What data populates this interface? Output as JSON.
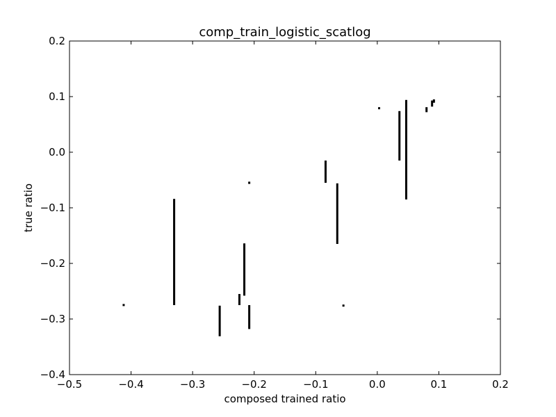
{
  "chart_data": {
    "type": "scatter",
    "title": "comp_train_logistic_scatlog",
    "xlabel": "composed trained ratio",
    "ylabel": "true ratio",
    "xlim": [
      -0.5,
      0.2
    ],
    "ylim": [
      -0.4,
      0.2
    ],
    "xticks": [
      -0.5,
      -0.4,
      -0.3,
      -0.2,
      -0.1,
      0.0,
      0.1,
      0.2
    ],
    "xtick_labels": [
      "−0.5",
      "−0.4",
      "−0.3",
      "−0.2",
      "−0.1",
      "0.0",
      "0.1",
      "0.2"
    ],
    "yticks": [
      -0.4,
      -0.3,
      -0.2,
      -0.1,
      0.0,
      0.1,
      0.2
    ],
    "ytick_labels": [
      "−0.4",
      "−0.3",
      "−0.2",
      "−0.1",
      "0.0",
      "0.1",
      "0.2"
    ],
    "grid": false,
    "legend": "none",
    "marker_color": "#000000",
    "points": [
      {
        "x": -0.412,
        "y_min": -0.276,
        "y_max": -0.273
      },
      {
        "x": -0.33,
        "y_min": -0.275,
        "y_max": -0.084
      },
      {
        "x": -0.256,
        "y_min": -0.331,
        "y_max": -0.276
      },
      {
        "x": -0.224,
        "y_min": -0.275,
        "y_max": -0.255
      },
      {
        "x": -0.216,
        "y_min": -0.258,
        "y_max": -0.164
      },
      {
        "x": -0.208,
        "y_min": -0.318,
        "y_max": -0.275
      },
      {
        "x": -0.208,
        "y_min": -0.057,
        "y_max": -0.053
      },
      {
        "x": -0.084,
        "y_min": -0.055,
        "y_max": -0.015
      },
      {
        "x": -0.065,
        "y_min": -0.165,
        "y_max": -0.056
      },
      {
        "x": -0.055,
        "y_min": -0.277,
        "y_max": -0.274
      },
      {
        "x": 0.003,
        "y_min": 0.078,
        "y_max": 0.081
      },
      {
        "x": 0.036,
        "y_min": -0.015,
        "y_max": 0.074
      },
      {
        "x": 0.047,
        "y_min": -0.085,
        "y_max": 0.094
      },
      {
        "x": 0.08,
        "y_min": 0.072,
        "y_max": 0.081
      },
      {
        "x": 0.089,
        "y_min": 0.082,
        "y_max": 0.093
      },
      {
        "x": 0.092,
        "y_min": 0.089,
        "y_max": 0.095
      }
    ]
  }
}
